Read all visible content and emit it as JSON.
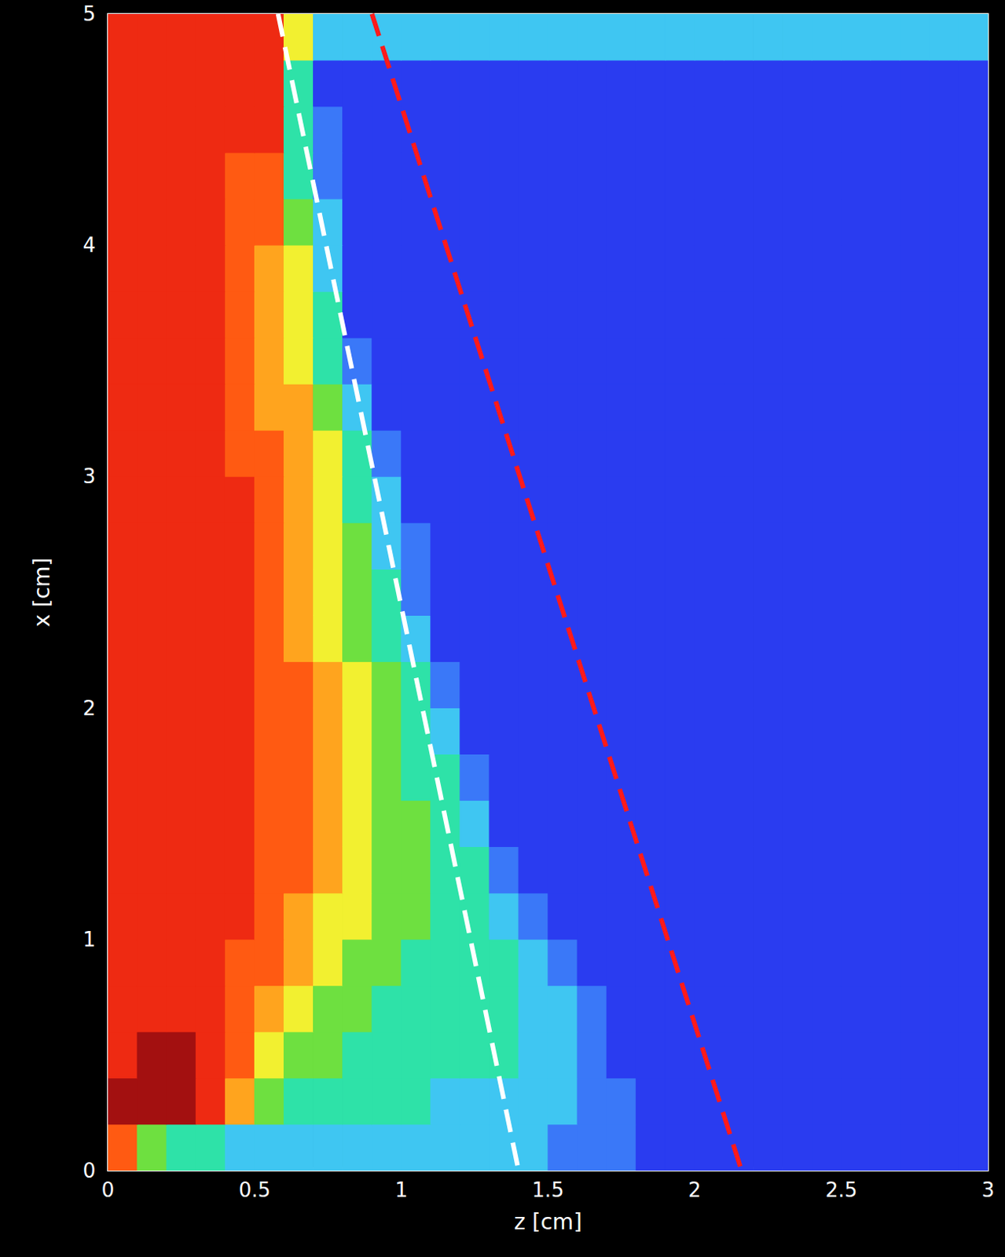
{
  "chart_data": {
    "type": "heatmap",
    "xlabel": "z [cm]",
    "ylabel": "x [cm]",
    "xlim": [
      0,
      3
    ],
    "ylim": [
      0,
      5
    ],
    "xticks": [
      0,
      0.5,
      1,
      1.5,
      2,
      2.5,
      3
    ],
    "yticks": [
      0,
      1,
      2,
      3,
      4,
      5
    ],
    "tick_labels": true,
    "z_bins": [
      0,
      0.1,
      0.2,
      0.3,
      0.4,
      0.5,
      0.6,
      0.7,
      0.8,
      0.9,
      1,
      1.1,
      1.2,
      1.3,
      1.4,
      1.5,
      1.6,
      1.7,
      1.8,
      1.9,
      2,
      2.1,
      2.2,
      2.3,
      2.4,
      2.5,
      2.6,
      2.7,
      2.8,
      2.9,
      3
    ],
    "x_bins": [
      0,
      0.2,
      0.4,
      0.6,
      0.8,
      1,
      1.2,
      1.4,
      1.6,
      1.8,
      2,
      2.2,
      2.4,
      2.6,
      2.8,
      3,
      3.2,
      3.4,
      3.6,
      3.8,
      4,
      4.2,
      4.4,
      4.6,
      4.8,
      5
    ],
    "colorbar_range": [
      1,
      10
    ],
    "values": [
      [
        8,
        5,
        4,
        4,
        3,
        3,
        3,
        3,
        3,
        3,
        3,
        3,
        3,
        3,
        3,
        2,
        2,
        2,
        1,
        1,
        1,
        1,
        1,
        1,
        1,
        1,
        1,
        1,
        1,
        1
      ],
      [
        10,
        10,
        10,
        9,
        7,
        5,
        4,
        4,
        4,
        4,
        4,
        3,
        3,
        3,
        3,
        3,
        2,
        2,
        1,
        1,
        1,
        1,
        1,
        1,
        1,
        1,
        1,
        1,
        1,
        1
      ],
      [
        9,
        10,
        10,
        9,
        8,
        6,
        5,
        5,
        4,
        4,
        4,
        4,
        4,
        4,
        3,
        3,
        2,
        1,
        1,
        1,
        1,
        1,
        1,
        1,
        1,
        1,
        1,
        1,
        1,
        1
      ],
      [
        9,
        9,
        9,
        9,
        8,
        7,
        6,
        5,
        5,
        4,
        4,
        4,
        4,
        4,
        3,
        3,
        2,
        1,
        1,
        1,
        1,
        1,
        1,
        1,
        1,
        1,
        1,
        1,
        1,
        1
      ],
      [
        9,
        9,
        9,
        9,
        8,
        8,
        7,
        6,
        5,
        5,
        4,
        4,
        4,
        4,
        3,
        2,
        1,
        1,
        1,
        1,
        1,
        1,
        1,
        1,
        1,
        1,
        1,
        1,
        1,
        1
      ],
      [
        9,
        9,
        9,
        9,
        9,
        8,
        7,
        6,
        6,
        5,
        5,
        4,
        4,
        3,
        2,
        1,
        1,
        1,
        1,
        1,
        1,
        1,
        1,
        1,
        1,
        1,
        1,
        1,
        1,
        1
      ],
      [
        9,
        9,
        9,
        9,
        9,
        8,
        8,
        7,
        6,
        5,
        5,
        4,
        4,
        2,
        1,
        1,
        1,
        1,
        1,
        1,
        1,
        1,
        1,
        1,
        1,
        1,
        1,
        1,
        1,
        1
      ],
      [
        9,
        9,
        9,
        9,
        9,
        8,
        8,
        7,
        6,
        5,
        5,
        4,
        3,
        1,
        1,
        1,
        1,
        1,
        1,
        1,
        1,
        1,
        1,
        1,
        1,
        1,
        1,
        1,
        1,
        1
      ],
      [
        9,
        9,
        9,
        9,
        9,
        8,
        8,
        7,
        6,
        5,
        4,
        4,
        2,
        1,
        1,
        1,
        1,
        1,
        1,
        1,
        1,
        1,
        1,
        1,
        1,
        1,
        1,
        1,
        1,
        1
      ],
      [
        9,
        9,
        9,
        9,
        9,
        8,
        8,
        7,
        6,
        5,
        4,
        3,
        1,
        1,
        1,
        1,
        1,
        1,
        1,
        1,
        1,
        1,
        1,
        1,
        1,
        1,
        1,
        1,
        1,
        1
      ],
      [
        9,
        9,
        9,
        9,
        9,
        8,
        8,
        7,
        6,
        5,
        4,
        2,
        1,
        1,
        1,
        1,
        1,
        1,
        1,
        1,
        1,
        1,
        1,
        1,
        1,
        1,
        1,
        1,
        1,
        1
      ],
      [
        9,
        9,
        9,
        9,
        9,
        8,
        7,
        6,
        5,
        4,
        3,
        1,
        1,
        1,
        1,
        1,
        1,
        1,
        1,
        1,
        1,
        1,
        1,
        1,
        1,
        1,
        1,
        1,
        1,
        1
      ],
      [
        9,
        9,
        9,
        9,
        9,
        8,
        7,
        6,
        5,
        4,
        2,
        1,
        1,
        1,
        1,
        1,
        1,
        1,
        1,
        1,
        1,
        1,
        1,
        1,
        1,
        1,
        1,
        1,
        1,
        1
      ],
      [
        9,
        9,
        9,
        9,
        9,
        8,
        7,
        6,
        5,
        3,
        2,
        1,
        1,
        1,
        1,
        1,
        1,
        1,
        1,
        1,
        1,
        1,
        1,
        1,
        1,
        1,
        1,
        1,
        1,
        1
      ],
      [
        9,
        9,
        9,
        9,
        9,
        8,
        7,
        6,
        4,
        3,
        1,
        1,
        1,
        1,
        1,
        1,
        1,
        1,
        1,
        1,
        1,
        1,
        1,
        1,
        1,
        1,
        1,
        1,
        1,
        1
      ],
      [
        9,
        9,
        9,
        9,
        8,
        8,
        7,
        6,
        4,
        2,
        1,
        1,
        1,
        1,
        1,
        1,
        1,
        1,
        1,
        1,
        1,
        1,
        1,
        1,
        1,
        1,
        1,
        1,
        1,
        1
      ],
      [
        9,
        9,
        9,
        9,
        8,
        7,
        7,
        5,
        3,
        1,
        1,
        1,
        1,
        1,
        1,
        1,
        1,
        1,
        1,
        1,
        1,
        1,
        1,
        1,
        1,
        1,
        1,
        1,
        1,
        1
      ],
      [
        9,
        9,
        9,
        9,
        8,
        7,
        6,
        4,
        2,
        1,
        1,
        1,
        1,
        1,
        1,
        1,
        1,
        1,
        1,
        1,
        1,
        1,
        1,
        1,
        1,
        1,
        1,
        1,
        1,
        1
      ],
      [
        9,
        9,
        9,
        9,
        8,
        7,
        6,
        4,
        1,
        1,
        1,
        1,
        1,
        1,
        1,
        1,
        1,
        1,
        1,
        1,
        1,
        1,
        1,
        1,
        1,
        1,
        1,
        1,
        1,
        1
      ],
      [
        9,
        9,
        9,
        9,
        8,
        7,
        6,
        3,
        1,
        1,
        1,
        1,
        1,
        1,
        1,
        1,
        1,
        1,
        1,
        1,
        1,
        1,
        1,
        1,
        1,
        1,
        1,
        1,
        1,
        1
      ],
      [
        9,
        9,
        9,
        9,
        8,
        8,
        5,
        3,
        1,
        1,
        1,
        1,
        1,
        1,
        1,
        1,
        1,
        1,
        1,
        1,
        1,
        1,
        1,
        1,
        1,
        1,
        1,
        1,
        1,
        1
      ],
      [
        9,
        9,
        9,
        9,
        8,
        8,
        4,
        2,
        1,
        1,
        1,
        1,
        1,
        1,
        1,
        1,
        1,
        1,
        1,
        1,
        1,
        1,
        1,
        1,
        1,
        1,
        1,
        1,
        1,
        1
      ],
      [
        9,
        9,
        9,
        9,
        9,
        9,
        4,
        2,
        1,
        1,
        1,
        1,
        1,
        1,
        1,
        1,
        1,
        1,
        1,
        1,
        1,
        1,
        1,
        1,
        1,
        1,
        1,
        1,
        1,
        1
      ],
      [
        9,
        9,
        9,
        9,
        9,
        9,
        4,
        1,
        1,
        1,
        1,
        1,
        1,
        1,
        1,
        1,
        1,
        1,
        1,
        1,
        1,
        1,
        1,
        1,
        1,
        1,
        1,
        1,
        1,
        1
      ],
      [
        9,
        9,
        9,
        9,
        9,
        9,
        6,
        3,
        3,
        3,
        3,
        3,
        3,
        3,
        3,
        3,
        3,
        3,
        3,
        3,
        3,
        3,
        3,
        3,
        3,
        3,
        3,
        3,
        3,
        3
      ]
    ],
    "lines": [
      {
        "color": "#ffffff",
        "line_style": "dashed",
        "z": [
          0.58,
          1.4
        ],
        "x": [
          5,
          0
        ]
      },
      {
        "color": "#ff1a1a",
        "line_style": "dashed",
        "z": [
          0.9,
          2.16
        ],
        "x": [
          5,
          0
        ]
      }
    ]
  }
}
